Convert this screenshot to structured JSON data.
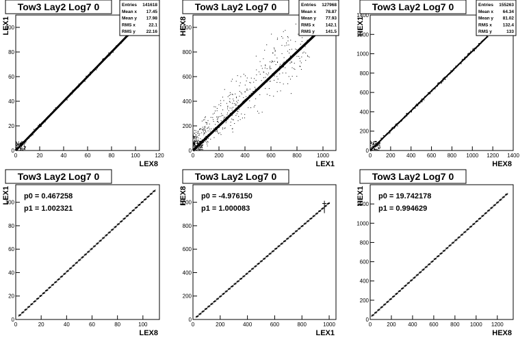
{
  "chart_data": [
    {
      "type": "scatter",
      "title": "Tow3 Lay2 Log7 0",
      "xlabel": "LEX8",
      "ylabel": "LEX1",
      "xlim": [
        0,
        120
      ],
      "ylim": [
        0,
        110
      ],
      "xticks": [
        0,
        20,
        40,
        60,
        80,
        100,
        120
      ],
      "yticks": [
        0,
        20,
        40,
        60,
        80,
        100
      ],
      "stats": [
        [
          "Entries",
          "141618"
        ],
        [
          "Mean x",
          "17.45"
        ],
        [
          "Mean y",
          "17.98"
        ],
        [
          "RMS x",
          "22.1"
        ],
        [
          "RMS y",
          "22.16"
        ]
      ],
      "fit": null,
      "series": [
        {
          "x": [
            0,
            104
          ],
          "y": [
            0,
            104
          ]
        }
      ]
    },
    {
      "type": "scatter",
      "title": "Tow3 Lay2 Log7 0",
      "xlabel": "LEX1",
      "ylabel": "HEX8",
      "xlim": [
        0,
        1100
      ],
      "ylim": [
        0,
        1100
      ],
      "xticks": [
        0,
        200,
        400,
        600,
        800,
        1000
      ],
      "yticks": [
        0,
        200,
        400,
        600,
        800,
        1000
      ],
      "stats": [
        [
          "Entries",
          "127968"
        ],
        [
          "Mean x",
          "78.87"
        ],
        [
          "Mean y",
          "77.93"
        ],
        [
          "RMS x",
          "142.1"
        ],
        [
          "RMS y",
          "141.5"
        ]
      ],
      "fit": null,
      "series": [
        {
          "x": [
            0,
            1050
          ],
          "y": [
            0,
            1050
          ]
        }
      ]
    },
    {
      "type": "scatter",
      "title": "Tow3 Lay2 Log7 0",
      "xlabel": "HEX8",
      "ylabel": "HEX1",
      "xlim": [
        0,
        1400
      ],
      "ylim": [
        0,
        1400
      ],
      "xticks": [
        0,
        200,
        400,
        600,
        800,
        1000,
        1200,
        1400
      ],
      "yticks": [
        0,
        200,
        400,
        600,
        800,
        1000,
        1200,
        1400
      ],
      "stats": [
        [
          "Entries",
          "155263"
        ],
        [
          "Mean x",
          "64.34"
        ],
        [
          "Mean y",
          "81.02"
        ],
        [
          "RMS x",
          "132.4"
        ],
        [
          "RMS y",
          "133"
        ]
      ],
      "fit": null,
      "series": [
        {
          "x": [
            0,
            1150
          ],
          "y": [
            0,
            1180
          ]
        }
      ]
    },
    {
      "type": "line",
      "title": "Tow3 Lay2 Log7 0",
      "xlabel": "LEX8",
      "ylabel": "LEX1",
      "xlim": [
        0,
        113
      ],
      "ylim": [
        0,
        115
      ],
      "xticks": [
        0,
        20,
        40,
        60,
        80,
        100
      ],
      "yticks": [
        0,
        20,
        40,
        60,
        80,
        100
      ],
      "stats": null,
      "fit": {
        "p0": "p0 = 0.467258",
        "p1": "p1 = 1.002321",
        "a": 0.467258,
        "b": 1.002321,
        "xmin": 2,
        "xmax": 110
      },
      "series": [
        {
          "x": [
            2,
            110
          ],
          "y": [
            2.47,
            110.72
          ]
        }
      ]
    },
    {
      "type": "line",
      "title": "Tow3 Lay2 Log7 0",
      "xlabel": "LEX1",
      "ylabel": "HEX8",
      "xlim": [
        0,
        1050
      ],
      "ylim": [
        0,
        1150
      ],
      "xticks": [
        0,
        200,
        400,
        600,
        800,
        1000
      ],
      "yticks": [
        0,
        200,
        400,
        600,
        800,
        1000
      ],
      "stats": null,
      "fit": {
        "p0": "p0 = -4.976150",
        "p1": "p1 = 1.000083",
        "a": -4.97615,
        "b": 1.000083,
        "xmin": 20,
        "xmax": 1005
      },
      "series": [
        {
          "x": [
            20,
            1005
          ],
          "y": [
            15.0,
            1000.1
          ]
        }
      ]
    },
    {
      "type": "line",
      "title": "Tow3 Lay2 Log7 0",
      "xlabel": "HEX8",
      "ylabel": "HEX1",
      "xlim": [
        0,
        1350
      ],
      "ylim": [
        0,
        1400
      ],
      "xticks": [
        0,
        200,
        400,
        600,
        800,
        1000,
        1200
      ],
      "yticks": [
        0,
        200,
        400,
        600,
        800,
        1000,
        1200
      ],
      "stats": null,
      "fit": {
        "p0": "p0 = 19.742178",
        "p1": "p1 = 0.994629",
        "a": 19.742178,
        "b": 0.994629,
        "xmin": 10,
        "xmax": 1300
      },
      "series": [
        {
          "x": [
            10,
            1300
          ],
          "y": [
            29.7,
            1312.8
          ]
        }
      ]
    }
  ]
}
